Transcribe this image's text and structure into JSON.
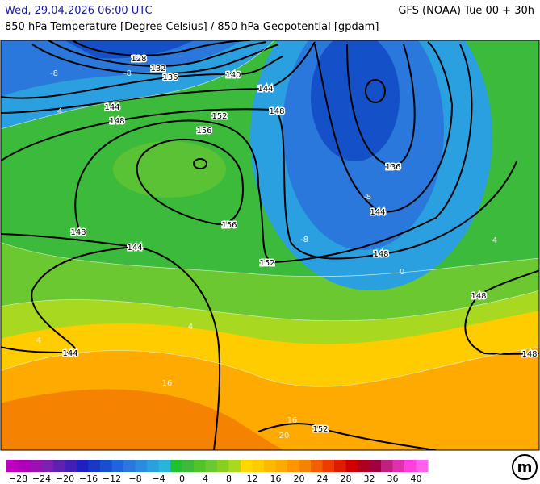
{
  "header": {
    "valid_time": "Wed, 29.04.2026 06:00 UTC",
    "model_run": "GFS (NOAA) Tue 00 + 30h",
    "subtitle": "850 hPa Temperature [Degree Celsius] / 850 hPa Geopotential [gpdam]"
  },
  "geopotential_labels": [
    "128",
    "132",
    "136",
    "140",
    "144",
    "144",
    "148",
    "152",
    "156",
    "148",
    "136",
    "144",
    "148",
    "152",
    "156",
    "148",
    "144",
    "144",
    "148",
    "148",
    "152"
  ],
  "temperature_labels": [
    "-8",
    "-8",
    "4",
    "-8",
    "-8",
    "4",
    "0",
    "4",
    "16",
    "16",
    "20",
    "4"
  ],
  "legend": {
    "ticks": [
      "−28",
      "−24",
      "−20",
      "−16",
      "−12",
      "−8",
      "−4",
      "0",
      "4",
      "8",
      "12",
      "16",
      "20",
      "24",
      "28",
      "32",
      "36",
      "40"
    ]
  },
  "logo": "m"
}
